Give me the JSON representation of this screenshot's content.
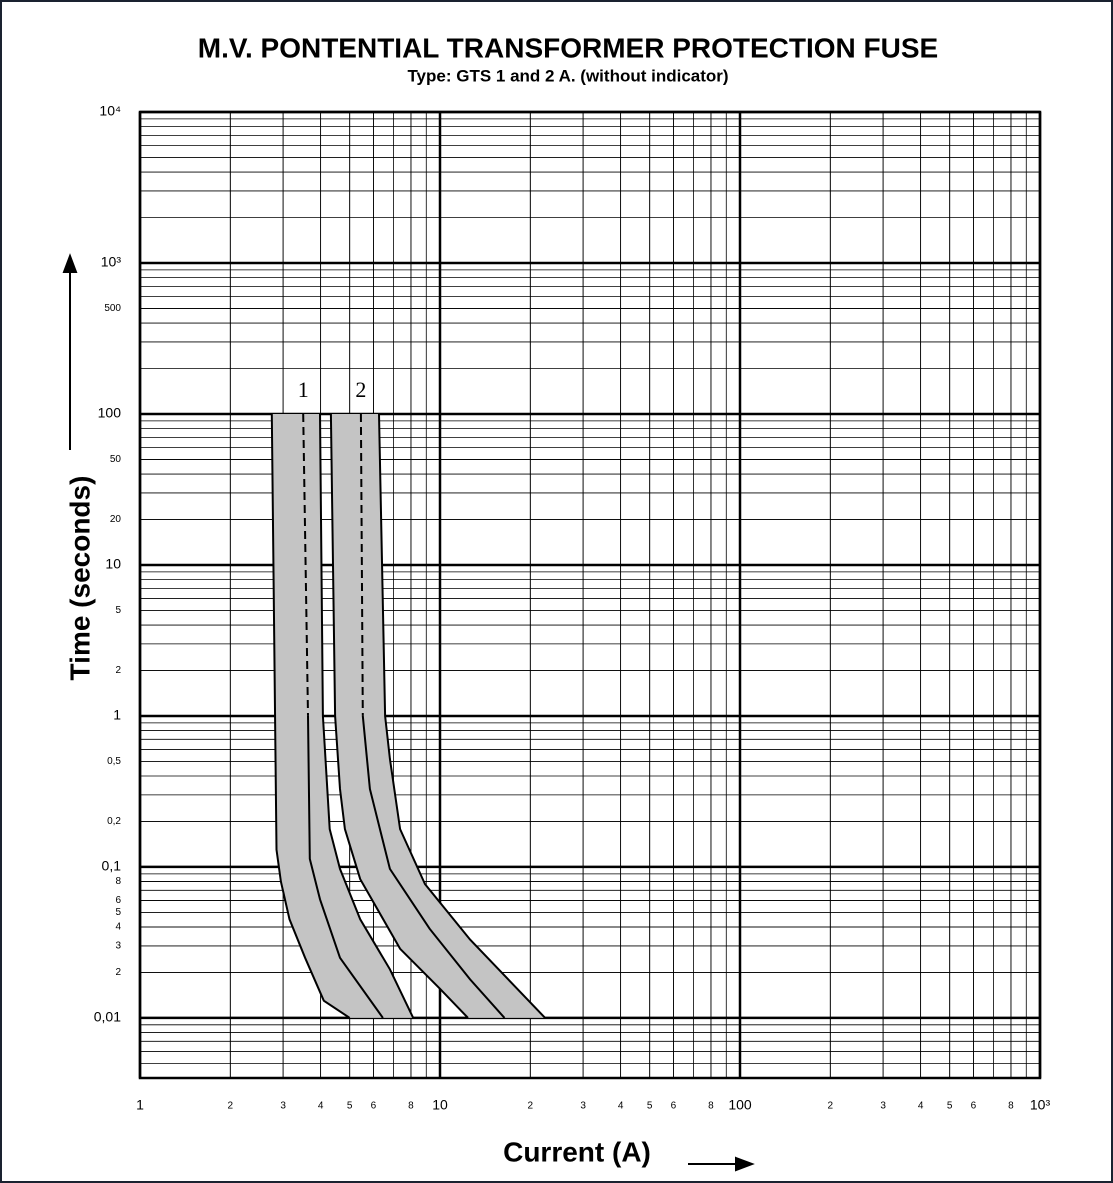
{
  "chart_data": {
    "type": "band",
    "title": "M.V. PONTENTIAL TRANSFORMER PROTECTION FUSE",
    "subtitle": "Type: GTS 1 and 2 A. (without indicator)",
    "x_label": "Current (A)",
    "y_label": "Time (seconds)",
    "log_x": true,
    "log_y": true,
    "grid": true,
    "xlim": [
      1,
      1000
    ],
    "ylim": [
      0.004,
      10000
    ],
    "xticks": [
      1,
      2,
      3,
      4,
      5,
      6,
      8,
      10,
      {
        "value": 20,
        "label": "2"
      },
      {
        "value": 30,
        "label": "3"
      },
      {
        "value": 40,
        "label": "4"
      },
      {
        "value": 50,
        "label": "5"
      },
      {
        "value": 60,
        "label": "6"
      },
      {
        "value": 80,
        "label": "8"
      },
      100,
      {
        "value": 200,
        "label": "2"
      },
      {
        "value": 300,
        "label": "3"
      },
      {
        "value": 400,
        "label": "4"
      },
      {
        "value": 500,
        "label": "5"
      },
      {
        "value": 600,
        "label": "6"
      },
      {
        "value": 800,
        "label": "8"
      },
      {
        "value": 1000,
        "label": "10³"
      }
    ],
    "yticks": [
      {
        "value": 10000,
        "label": "10⁴"
      },
      {
        "value": 1000,
        "label": "10³"
      },
      500,
      100,
      50,
      20,
      10,
      5,
      2,
      1,
      {
        "value": 0.5,
        "label": "0,5"
      },
      {
        "value": 0.2,
        "label": "0,2"
      },
      {
        "value": 0.1,
        "label": "0,1"
      },
      {
        "value": 0.08,
        "label": "8"
      },
      {
        "value": 0.06,
        "label": "6"
      },
      {
        "value": 0.05,
        "label": "5"
      },
      {
        "value": 0.04,
        "label": "4"
      },
      {
        "value": 0.03,
        "label": "3"
      },
      {
        "value": 0.02,
        "label": "2"
      },
      {
        "value": 0.01,
        "label": "0,01"
      }
    ],
    "band_color": "#c4c4c4",
    "line_color": "#000000",
    "bands": [
      {
        "name": "1",
        "lower": {
          "x": [
            2.75,
            2.85,
            2.95,
            3.15,
            3.55,
            4.1,
            5
          ],
          "values": [
            100,
            0.13,
            0.08,
            0.045,
            0.025,
            0.013,
            0.01
          ]
        },
        "upper": {
          "x": [
            3.98,
            4.07,
            4.29,
            4.64,
            5.42,
            6.81,
            8.14
          ],
          "values": [
            100,
            1,
            0.178,
            0.097,
            0.045,
            0.021,
            0.01
          ]
        },
        "center": [
          {
            "dashed": true,
            "x": [
              3.5,
              3.63
            ],
            "values": [
              100,
              1
            ]
          },
          {
            "dashed": false,
            "x": [
              3.63,
              3.68,
              3.98,
              4.64,
              6.45
            ],
            "values": [
              1,
              0.113,
              0.061,
              0.025,
              0.01
            ]
          }
        ]
      },
      {
        "name": "2",
        "lower": {
          "x": [
            4.33,
            4.47,
            4.64,
            4.82,
            5.42,
            7.36,
            10,
            12.4
          ],
          "values": [
            100,
            1,
            0.328,
            0.178,
            0.083,
            0.0287,
            0.0156,
            0.01
          ]
        },
        "upper": {
          "x": [
            6.26,
            6.56,
            6.81,
            7.36,
            8.91,
            12.6,
            22.4
          ],
          "values": [
            100,
            1,
            0.52,
            0.178,
            0.077,
            0.033,
            0.01
          ]
        },
        "center": [
          {
            "dashed": true,
            "x": [
              5.45,
              5.53
            ],
            "values": [
              100,
              1
            ]
          },
          {
            "dashed": false,
            "x": [
              5.53,
              5.84,
              6.81,
              9.23,
              12.6,
              16.4
            ],
            "values": [
              1,
              0.328,
              0.097,
              0.039,
              0.018,
              0.01
            ]
          }
        ]
      }
    ]
  }
}
